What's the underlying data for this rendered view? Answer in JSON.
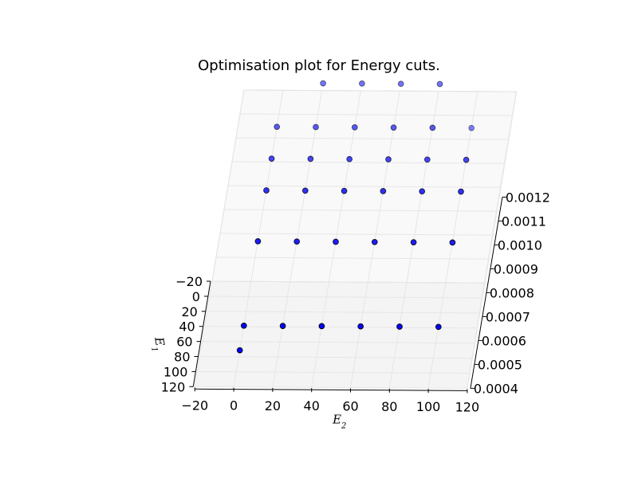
{
  "chart_data": {
    "type": "scatter",
    "dimensions": "3d",
    "title": "Optimisation plot for Energy cuts.",
    "xlabel": "E_2",
    "ylabel": "E_1",
    "zlabel": "",
    "xticks": [
      "−20",
      "0",
      "20",
      "40",
      "60",
      "80",
      "100",
      "120"
    ],
    "yticks": [
      "−20",
      "0",
      "20",
      "40",
      "60",
      "80",
      "100",
      "120"
    ],
    "zticks": [
      "0.0004",
      "0.0005",
      "0.0006",
      "0.0007",
      "0.0008",
      "0.0009",
      "0.0010",
      "0.0011",
      "0.0012"
    ],
    "xlim": [
      -20,
      120
    ],
    "ylim": [
      -20,
      120
    ],
    "zlim": [
      0.0004,
      0.0012
    ],
    "grid": true,
    "marker_color": "#0000ff",
    "points": [
      {
        "x": 0,
        "y": 100,
        "z": 0.00049
      },
      {
        "x": 0,
        "y": 80,
        "z": 0.00053
      },
      {
        "x": 20,
        "y": 80,
        "z": 0.00053
      },
      {
        "x": 40,
        "y": 80,
        "z": 0.00053
      },
      {
        "x": 60,
        "y": 80,
        "z": 0.00053
      },
      {
        "x": 80,
        "y": 80,
        "z": 0.00053
      },
      {
        "x": 100,
        "y": 80,
        "z": 0.00053
      },
      {
        "x": 0,
        "y": 60,
        "z": 0.00082
      },
      {
        "x": 20,
        "y": 60,
        "z": 0.00082
      },
      {
        "x": 40,
        "y": 60,
        "z": 0.00082
      },
      {
        "x": 60,
        "y": 60,
        "z": 0.00082
      },
      {
        "x": 80,
        "y": 60,
        "z": 0.00082
      },
      {
        "x": 100,
        "y": 60,
        "z": 0.00082
      },
      {
        "x": 0,
        "y": 40,
        "z": 0.00097
      },
      {
        "x": 20,
        "y": 40,
        "z": 0.00097
      },
      {
        "x": 40,
        "y": 40,
        "z": 0.00097
      },
      {
        "x": 60,
        "y": 40,
        "z": 0.00097
      },
      {
        "x": 80,
        "y": 40,
        "z": 0.00097
      },
      {
        "x": 100,
        "y": 40,
        "z": 0.00097
      },
      {
        "x": 0,
        "y": 20,
        "z": 0.00104
      },
      {
        "x": 20,
        "y": 20,
        "z": 0.00104
      },
      {
        "x": 40,
        "y": 20,
        "z": 0.00104
      },
      {
        "x": 60,
        "y": 20,
        "z": 0.00104
      },
      {
        "x": 80,
        "y": 20,
        "z": 0.00104
      },
      {
        "x": 100,
        "y": 20,
        "z": 0.00104
      },
      {
        "x": 0,
        "y": 0,
        "z": 0.00111
      },
      {
        "x": 20,
        "y": 0,
        "z": 0.00111
      },
      {
        "x": 40,
        "y": 0,
        "z": 0.00111
      },
      {
        "x": 60,
        "y": 0,
        "z": 0.00111
      },
      {
        "x": 80,
        "y": 0,
        "z": 0.00111
      },
      {
        "x": 100,
        "y": 0,
        "z": 0.00111
      },
      {
        "x": 20,
        "y": -20,
        "z": 0.00123
      },
      {
        "x": 40,
        "y": -20,
        "z": 0.00123
      },
      {
        "x": 60,
        "y": -20,
        "z": 0.00123
      },
      {
        "x": 80,
        "y": -20,
        "z": 0.00123
      }
    ]
  }
}
